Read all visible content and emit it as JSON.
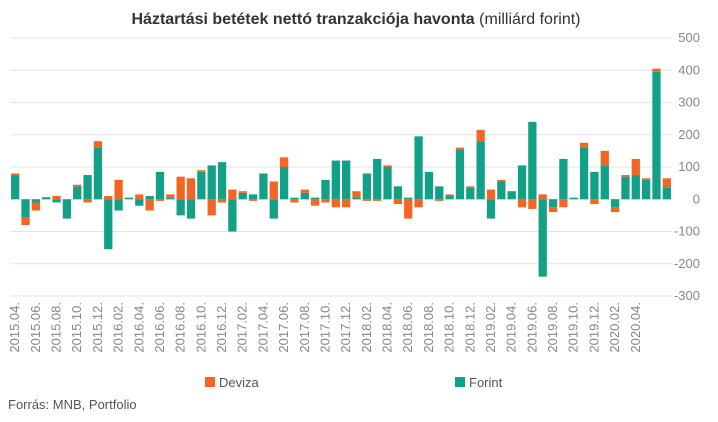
{
  "chart_data": {
    "type": "bar",
    "stacked": true,
    "title": "Háztartási betétek nettó tranzakciója havonta",
    "subtitle": "(milliárd forint)",
    "source": "Forrás: MNB, Portfolio",
    "categories": [
      "2015.04.",
      null,
      "2015.06.",
      null,
      "2015.08.",
      null,
      "2015.10.",
      null,
      "2015.12.",
      null,
      "2016.02.",
      null,
      "2016.04.",
      null,
      "2016.06.",
      null,
      "2016.08.",
      null,
      "2016.10.",
      null,
      "2016.12.",
      null,
      "2017.02.",
      null,
      "2017.04.",
      null,
      "2017.06.",
      null,
      "2017.08.",
      null,
      "2017.10.",
      null,
      "2017.12.",
      null,
      "2018.02.",
      null,
      "2018.04.",
      null,
      "2018.06.",
      null,
      "2018.08.",
      null,
      "2018.10.",
      null,
      "2018.12.",
      null,
      "2019.02.",
      null,
      "2019.04.",
      null,
      "2019.06.",
      null,
      "2019.08.",
      null,
      "2019.10.",
      null,
      "2019.12.",
      null,
      "2020.02.",
      null,
      "2020.04.",
      null,
      null,
      null
    ],
    "series": [
      {
        "name": "Forint",
        "color": "#12a086",
        "values": [
          75,
          -55,
          -10,
          5,
          -10,
          -60,
          40,
          75,
          160,
          -155,
          -35,
          5,
          -20,
          10,
          85,
          5,
          -50,
          -60,
          85,
          105,
          115,
          -100,
          20,
          15,
          80,
          -60,
          100,
          5,
          20,
          5,
          60,
          120,
          120,
          5,
          80,
          125,
          100,
          40,
          5,
          195,
          85,
          40,
          10,
          155,
          35,
          180,
          -60,
          55,
          25,
          105,
          240,
          -240,
          -25,
          125,
          5,
          160,
          85,
          105,
          -25,
          70,
          75,
          60,
          395,
          35
        ]
      },
      {
        "name": "Deviza",
        "color": "#f26522",
        "values": [
          5,
          -25,
          -25,
          2,
          10,
          0,
          5,
          -10,
          20,
          10,
          60,
          0,
          15,
          -35,
          -5,
          10,
          70,
          65,
          5,
          -50,
          -10,
          30,
          5,
          -5,
          0,
          55,
          30,
          -10,
          10,
          -20,
          -10,
          -25,
          -25,
          20,
          -5,
          -5,
          5,
          -15,
          -60,
          -25,
          0,
          -5,
          5,
          5,
          5,
          35,
          30,
          5,
          0,
          -25,
          -30,
          15,
          -15,
          -25,
          0,
          15,
          -15,
          45,
          -15,
          5,
          50,
          5,
          10,
          30
        ]
      }
    ],
    "ylim": [
      -300,
      500
    ],
    "yticks": [
      -300,
      -200,
      -100,
      0,
      100,
      200,
      300,
      400,
      500
    ],
    "grid": true
  }
}
